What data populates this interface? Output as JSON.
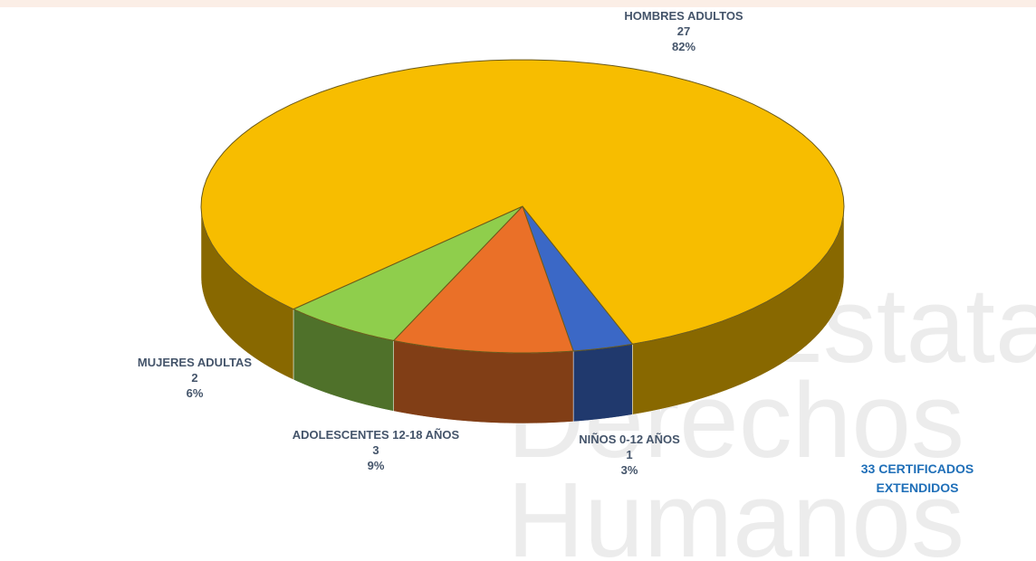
{
  "chart_data": {
    "type": "pie3d",
    "categories": [
      "HOMBRES ADULTOS",
      "NIÑOS 0-12 AÑOS",
      "ADOLESCENTES 12-18 AÑOS",
      "MUJERES ADULTAS"
    ],
    "values": [
      27,
      1,
      3,
      2
    ],
    "percent_labels": [
      "82%",
      "3%",
      "9%",
      "6%"
    ],
    "colors": [
      "#f7bd00",
      "#3b68c6",
      "#ea7028",
      "#8fce4c"
    ],
    "annotation": [
      "33 CERTIFICADOS",
      "EXTENDIDOS"
    ],
    "watermark": [
      "Estatal de",
      "Derechos",
      "Humanos"
    ]
  }
}
